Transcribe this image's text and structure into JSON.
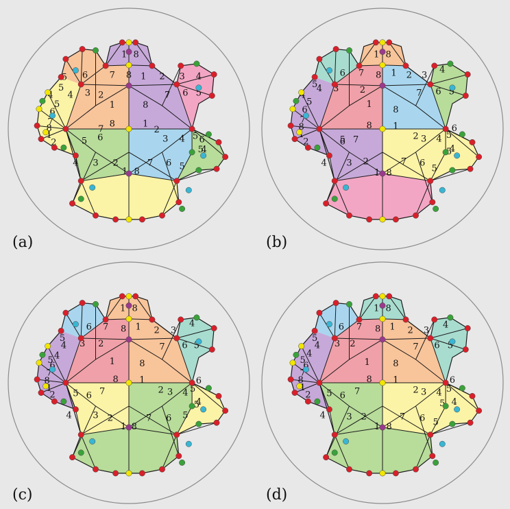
{
  "figure": {
    "background": "#e8e8e8",
    "circle_stroke": "#8c8c8c",
    "edge_color": "#1a1a1a",
    "vertex_colors": {
      "red": "#d9202a",
      "yellow": "#f2e600",
      "purple": "#9b3a8c",
      "cyan": "#39b6d4",
      "green": "#3aa23a"
    },
    "palette": {
      "yellow": "#fbf3a6",
      "orange": "#f8c49a",
      "green": "#b8dc9a",
      "blue": "#a9d6ee",
      "purple": "#c6a9d9",
      "pink": "#f3a6c4",
      "red": "#f0a0a8",
      "teal": "#a8dccf"
    },
    "panels": [
      {
        "id": "a",
        "label": "(a)",
        "scheme": [
          "orange",
          "purple",
          "green",
          "blue",
          "purple",
          "pink",
          "yellow",
          "green",
          "yellow",
          "orange"
        ],
        "labels": [
          {
            "t": "1",
            "u": -0.25,
            "v": -0.37
          },
          {
            "t": "8",
            "u": 0.25,
            "v": -0.37
          },
          {
            "t": "8",
            "u": -0.25,
            "v": -0.09
          },
          {
            "t": "1",
            "u": 0.25,
            "v": -0.09
          },
          {
            "t": "2",
            "u": -0.42,
            "v": -0.52
          },
          {
            "t": "7",
            "u": 0.58,
            "v": -0.52
          },
          {
            "t": "7",
            "u": -0.42,
            "v": -0.01
          },
          {
            "t": "2",
            "u": 0.42,
            "v": 0.0
          },
          {
            "t": "6",
            "u": -0.66,
            "v": -0.82
          },
          {
            "t": "7",
            "u": -0.25,
            "v": -0.82
          },
          {
            "t": "8",
            "u": 0.0,
            "v": -0.82
          },
          {
            "t": "1",
            "u": 0.22,
            "v": -0.8
          },
          {
            "t": "2",
            "u": 0.5,
            "v": -0.8
          },
          {
            "t": "3",
            "u": 0.8,
            "v": -0.8
          },
          {
            "t": "6",
            "u": 0.85,
            "v": -0.55
          },
          {
            "t": "5",
            "u": 1.05,
            "v": -0.55
          },
          {
            "t": "4",
            "u": 1.05,
            "v": -0.8
          },
          {
            "t": "1",
            "u": -0.07,
            "v": -1.13
          },
          {
            "t": "8",
            "u": 0.11,
            "v": -1.13
          },
          {
            "t": "4",
            "u": -0.88,
            "v": -0.52
          },
          {
            "t": "3",
            "u": -0.62,
            "v": -0.55
          },
          {
            "t": "5",
            "u": -0.97,
            "v": -0.79
          },
          {
            "t": "6",
            "u": -0.43,
            "v": 0.12
          },
          {
            "t": "5",
            "u": -0.67,
            "v": 0.17
          },
          {
            "t": "4",
            "u": -0.8,
            "v": 0.5
          },
          {
            "t": "3",
            "u": -0.5,
            "v": 0.5
          },
          {
            "t": "2",
            "u": -0.2,
            "v": 0.5
          },
          {
            "t": "1",
            "u": -0.06,
            "v": 0.63
          },
          {
            "t": "8",
            "u": 0.12,
            "v": 0.63
          },
          {
            "t": "7",
            "u": 0.32,
            "v": 0.5
          },
          {
            "t": "6",
            "u": 0.6,
            "v": 0.5
          },
          {
            "t": "5",
            "u": 0.8,
            "v": 0.55
          },
          {
            "t": "3",
            "u": 0.55,
            "v": 0.14
          },
          {
            "t": "4",
            "u": 0.8,
            "v": 0.14
          },
          {
            "t": "5",
            "u": 1.0,
            "v": 0.1
          },
          {
            "t": "6",
            "u": 1.1,
            "v": 0.15
          },
          {
            "t": "4",
            "u": 1.13,
            "v": 0.3
          },
          {
            "t": "5",
            "u": 1.08,
            "v": 0.3
          },
          {
            "t": "4",
            "u": -1.18,
            "v": -0.52
          },
          {
            "t": "5",
            "u": -1.08,
            "v": -0.38
          },
          {
            "t": "6",
            "u": -1.15,
            "v": -0.27
          },
          {
            "t": "7",
            "u": -1.18,
            "v": -0.12
          },
          {
            "t": "8",
            "u": -1.2,
            "v": -0.02
          },
          {
            "t": "1",
            "u": -1.2,
            "v": 0.08
          },
          {
            "t": "2",
            "u": -1.13,
            "v": 0.19
          },
          {
            "t": "5",
            "u": -1.02,
            "v": -0.63
          }
        ]
      },
      {
        "id": "b",
        "label": "(b)",
        "scheme": [
          "red",
          "blue",
          "purple",
          "yellow",
          "orange",
          "green",
          "pink",
          "yellow",
          "purple",
          "teal"
        ],
        "labels": [
          {
            "t": "1",
            "u": -0.2,
            "v": -0.38
          },
          {
            "t": "8",
            "u": 0.2,
            "v": -0.3
          },
          {
            "t": "8",
            "u": -0.2,
            "v": -0.06
          },
          {
            "t": "1",
            "u": 0.2,
            "v": -0.05
          },
          {
            "t": "2",
            "u": -0.3,
            "v": -0.6
          },
          {
            "t": "7",
            "u": 0.55,
            "v": -0.55
          },
          {
            "t": "7",
            "u": -0.4,
            "v": 0.15
          },
          {
            "t": "2",
            "u": 0.5,
            "v": 0.1
          },
          {
            "t": "6",
            "u": -0.6,
            "v": -0.85
          },
          {
            "t": "7",
            "u": -0.32,
            "v": -0.85
          },
          {
            "t": "8",
            "u": -0.06,
            "v": -0.82
          },
          {
            "t": "1",
            "u": 0.17,
            "v": -0.85
          },
          {
            "t": "2",
            "u": 0.4,
            "v": -0.82
          },
          {
            "t": "3",
            "u": 0.63,
            "v": -0.82
          },
          {
            "t": "6",
            "u": 0.84,
            "v": -0.57
          },
          {
            "t": "5",
            "u": 1.04,
            "v": -0.57
          },
          {
            "t": "4",
            "u": 0.9,
            "v": -0.9
          },
          {
            "t": "1",
            "u": -0.09,
            "v": -1.13
          },
          {
            "t": "8",
            "u": 0.09,
            "v": -1.13
          },
          {
            "t": "4",
            "u": -0.95,
            "v": -0.62
          },
          {
            "t": "3",
            "u": -0.7,
            "v": -0.62
          },
          {
            "t": "5",
            "u": -0.6,
            "v": 0.15
          },
          {
            "t": "6",
            "u": -0.6,
            "v": 0.18
          },
          {
            "t": "4",
            "u": -0.88,
            "v": 0.5
          },
          {
            "t": "3",
            "u": -0.5,
            "v": 0.5
          },
          {
            "t": "2",
            "u": -0.25,
            "v": 0.48
          },
          {
            "t": "1",
            "u": -0.08,
            "v": 0.65
          },
          {
            "t": "8",
            "u": 0.1,
            "v": 0.65
          },
          {
            "t": "7",
            "u": 0.32,
            "v": 0.48
          },
          {
            "t": "6",
            "u": 0.6,
            "v": 0.5
          },
          {
            "t": "5",
            "u": 0.78,
            "v": 0.58
          },
          {
            "t": "3",
            "u": 0.62,
            "v": 0.14
          },
          {
            "t": "4",
            "u": 0.85,
            "v": 0.14
          },
          {
            "t": "5",
            "u": 1.0,
            "v": 0.08
          },
          {
            "t": "6",
            "u": 1.08,
            "v": -0.02
          },
          {
            "t": "4",
            "u": 1.05,
            "v": 0.29
          },
          {
            "t": "5",
            "u": 1.0,
            "v": 0.33
          },
          {
            "t": "4",
            "u": -1.2,
            "v": -0.52
          },
          {
            "t": "5",
            "u": -1.1,
            "v": -0.42
          },
          {
            "t": "6",
            "u": -1.17,
            "v": -0.3
          },
          {
            "t": "7",
            "u": -1.2,
            "v": -0.15
          },
          {
            "t": "8",
            "u": -1.22,
            "v": -0.04
          },
          {
            "t": "1",
            "u": -1.22,
            "v": 0.07
          },
          {
            "t": "2",
            "u": -1.15,
            "v": 0.18
          },
          {
            "t": "5",
            "u": -1.02,
            "v": -0.68
          }
        ]
      },
      {
        "id": "c",
        "label": "(c)",
        "scheme": [
          "red",
          "orange",
          "yellow",
          "green",
          "orange",
          "teal",
          "green",
          "yellow",
          "purple",
          "blue"
        ],
        "labels": [
          {
            "t": "1",
            "u": -0.25,
            "v": -0.33
          },
          {
            "t": "8",
            "u": 0.2,
            "v": -0.3
          },
          {
            "t": "8",
            "u": -0.2,
            "v": -0.06
          },
          {
            "t": "1",
            "u": 0.2,
            "v": -0.05
          },
          {
            "t": "2",
            "u": -0.42,
            "v": -0.6
          },
          {
            "t": "7",
            "u": 0.5,
            "v": -0.55
          },
          {
            "t": "7",
            "u": -0.4,
            "v": 0.12
          },
          {
            "t": "2",
            "u": 0.48,
            "v": 0.1
          },
          {
            "t": "6",
            "u": -0.6,
            "v": -0.85
          },
          {
            "t": "7",
            "u": -0.35,
            "v": -0.85
          },
          {
            "t": "8",
            "u": -0.08,
            "v": -0.82
          },
          {
            "t": "1",
            "u": 0.14,
            "v": -0.85
          },
          {
            "t": "2",
            "u": 0.42,
            "v": -0.8
          },
          {
            "t": "3",
            "u": 0.67,
            "v": -0.8
          },
          {
            "t": "6",
            "u": 0.84,
            "v": -0.57
          },
          {
            "t": "5",
            "u": 1.02,
            "v": -0.57
          },
          {
            "t": "4",
            "u": 0.95,
            "v": -0.9
          },
          {
            "t": "1",
            "u": -0.09,
            "v": -1.13
          },
          {
            "t": "8",
            "u": 0.09,
            "v": -1.13
          },
          {
            "t": "4",
            "u": -0.98,
            "v": -0.57
          },
          {
            "t": "3",
            "u": -0.7,
            "v": -0.6
          },
          {
            "t": "5",
            "u": -0.8,
            "v": 0.15
          },
          {
            "t": "6",
            "u": -0.6,
            "v": 0.18
          },
          {
            "t": "4",
            "u": -0.9,
            "v": 0.48
          },
          {
            "t": "3",
            "u": -0.5,
            "v": 0.48
          },
          {
            "t": "2",
            "u": -0.28,
            "v": 0.52
          },
          {
            "t": "1",
            "u": -0.08,
            "v": 0.65
          },
          {
            "t": "8",
            "u": 0.08,
            "v": 0.65
          },
          {
            "t": "7",
            "u": 0.3,
            "v": 0.52
          },
          {
            "t": "6",
            "u": 0.6,
            "v": 0.52
          },
          {
            "t": "5",
            "u": 0.85,
            "v": 0.48
          },
          {
            "t": "3",
            "u": 0.62,
            "v": 0.13
          },
          {
            "t": "4",
            "u": 0.85,
            "v": 0.14
          },
          {
            "t": "5",
            "u": 0.96,
            "v": 0.08
          },
          {
            "t": "6",
            "u": 1.05,
            "v": -0.04
          },
          {
            "t": "4",
            "u": 1.05,
            "v": 0.28
          },
          {
            "t": "5",
            "u": 1.02,
            "v": 0.32
          },
          {
            "t": "4",
            "u": -1.08,
            "v": -0.42
          },
          {
            "t": "5",
            "u": -1.18,
            "v": -0.35
          },
          {
            "t": "6",
            "u": -1.15,
            "v": -0.27
          },
          {
            "t": "7",
            "u": -1.2,
            "v": -0.16
          },
          {
            "t": "8",
            "u": -1.23,
            "v": -0.04
          },
          {
            "t": "1",
            "u": -1.2,
            "v": 0.07
          },
          {
            "t": "2",
            "u": -1.15,
            "v": 0.17
          },
          {
            "t": "5",
            "u": -1.0,
            "v": -0.68
          }
        ]
      },
      {
        "id": "d",
        "label": "(d)",
        "scheme": [
          "red",
          "orange",
          "green",
          "yellow",
          "teal",
          "teal",
          "green",
          "yellow",
          "purple",
          "blue"
        ],
        "labels": [
          {
            "t": "1",
            "u": -0.23,
            "v": -0.32
          },
          {
            "t": "8",
            "u": 0.2,
            "v": -0.3
          },
          {
            "t": "8",
            "u": -0.2,
            "v": -0.06
          },
          {
            "t": "1",
            "u": 0.2,
            "v": -0.05
          },
          {
            "t": "2",
            "u": -0.45,
            "v": -0.6
          },
          {
            "t": "7",
            "u": 0.5,
            "v": -0.55
          },
          {
            "t": "7",
            "u": -0.38,
            "v": 0.12
          },
          {
            "t": "2",
            "u": 0.5,
            "v": 0.1
          },
          {
            "t": "6",
            "u": -0.62,
            "v": -0.85
          },
          {
            "t": "7",
            "u": -0.35,
            "v": -0.85
          },
          {
            "t": "8",
            "u": -0.07,
            "v": -0.82
          },
          {
            "t": "1",
            "u": 0.15,
            "v": -0.85
          },
          {
            "t": "2",
            "u": 0.42,
            "v": -0.8
          },
          {
            "t": "3",
            "u": 0.66,
            "v": -0.8
          },
          {
            "t": "6",
            "u": 0.82,
            "v": -0.57
          },
          {
            "t": "5",
            "u": 1.02,
            "v": -0.57
          },
          {
            "t": "4",
            "u": 0.95,
            "v": -0.88
          },
          {
            "t": "1",
            "u": -0.09,
            "v": -1.13
          },
          {
            "t": "8",
            "u": 0.09,
            "v": -1.13
          },
          {
            "t": "4",
            "u": -0.98,
            "v": -0.57
          },
          {
            "t": "3",
            "u": -0.68,
            "v": -0.6
          },
          {
            "t": "5",
            "u": -0.8,
            "v": 0.15
          },
          {
            "t": "6",
            "u": -0.6,
            "v": 0.18
          },
          {
            "t": "4",
            "u": -0.9,
            "v": 0.48
          },
          {
            "t": "3",
            "u": -0.5,
            "v": 0.5
          },
          {
            "t": "2",
            "u": -0.28,
            "v": 0.5
          },
          {
            "t": "1",
            "u": -0.08,
            "v": 0.65
          },
          {
            "t": "8",
            "u": 0.1,
            "v": 0.65
          },
          {
            "t": "7",
            "u": 0.3,
            "v": 0.5
          },
          {
            "t": "6",
            "u": 0.6,
            "v": 0.52
          },
          {
            "t": "5",
            "u": 0.8,
            "v": 0.58
          },
          {
            "t": "3",
            "u": 0.62,
            "v": 0.13
          },
          {
            "t": "4",
            "u": 0.85,
            "v": 0.14
          },
          {
            "t": "5",
            "u": 1.0,
            "v": 0.08
          },
          {
            "t": "6",
            "u": 1.05,
            "v": -0.05
          },
          {
            "t": "4",
            "u": 1.08,
            "v": 0.28
          },
          {
            "t": "5",
            "u": 0.9,
            "v": 0.3
          },
          {
            "t": "4",
            "u": -1.1,
            "v": -0.45
          },
          {
            "t": "5",
            "u": -1.2,
            "v": -0.35
          },
          {
            "t": "6",
            "u": -1.15,
            "v": -0.27
          },
          {
            "t": "7",
            "u": -1.2,
            "v": -0.16
          },
          {
            "t": "8",
            "u": -1.23,
            "v": -0.05
          },
          {
            "t": "1",
            "u": -1.2,
            "v": 0.06
          },
          {
            "t": "2",
            "u": -1.12,
            "v": 0.17
          },
          {
            "t": "5",
            "u": -1.02,
            "v": -0.68
          }
        ]
      }
    ]
  }
}
